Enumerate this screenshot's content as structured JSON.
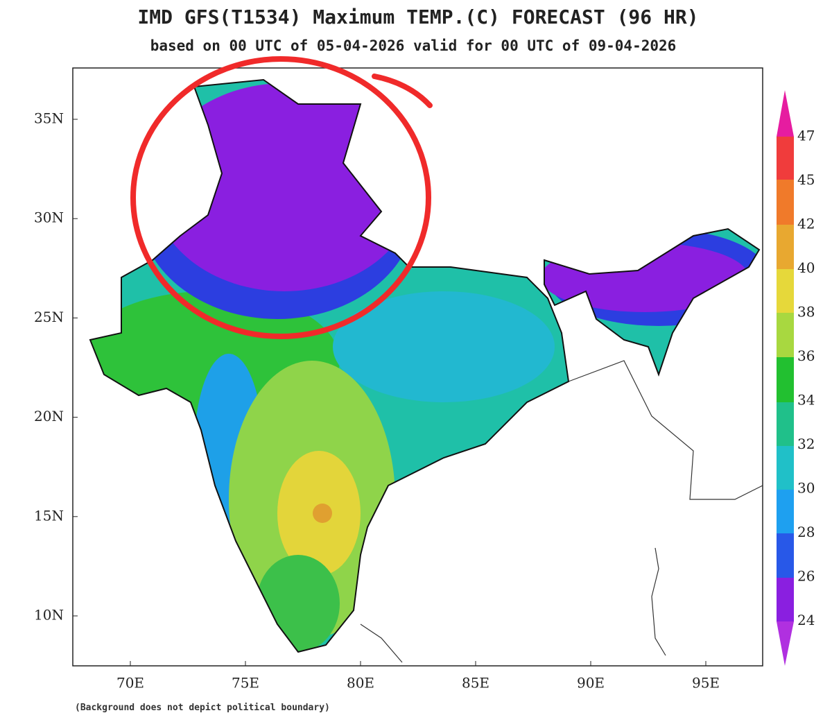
{
  "header": {
    "title": "IMD GFS(T1534) Maximum TEMP.(C) FORECAST (96 HR)",
    "subtitle": "based on 00 UTC of 05-04-2026 valid for 00 UTC of 09-04-2026"
  },
  "map": {
    "lat_labels": [
      "35N",
      "30N",
      "25N",
      "20N",
      "15N",
      "10N"
    ],
    "lon_labels": [
      "70E",
      "75E",
      "80E",
      "85E",
      "90E",
      "95E"
    ]
  },
  "colorbar": {
    "labels": [
      47,
      45,
      42,
      40,
      38,
      36,
      34,
      32,
      30,
      28,
      26,
      24
    ]
  },
  "footnote": "(Background does not depict political boundary)"
}
